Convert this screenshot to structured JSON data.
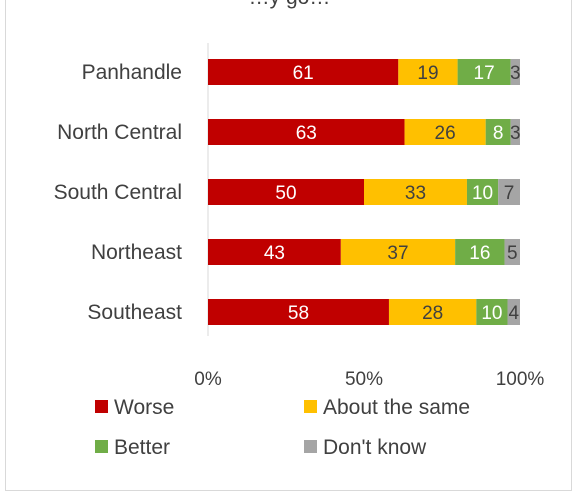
{
  "chart_data": {
    "type": "bar",
    "orientation": "horizontal",
    "stacked": "percent",
    "title": "…y go…",
    "categories": [
      "Panhandle",
      "North Central",
      "South Central",
      "Northeast",
      "Southeast"
    ],
    "series": [
      {
        "name": "Worse",
        "color": "#c00000",
        "label_color": "#ffffff",
        "values": [
          61,
          63,
          50,
          43,
          58
        ]
      },
      {
        "name": "About the same",
        "color": "#ffc000",
        "label_color": "#404040",
        "values": [
          19,
          26,
          33,
          37,
          28
        ]
      },
      {
        "name": "Better",
        "color": "#70ad47",
        "label_color": "#ffffff",
        "values": [
          17,
          8,
          10,
          16,
          10
        ]
      },
      {
        "name": "Don't know",
        "color": "#a5a5a5",
        "label_color": "#404040",
        "values": [
          3,
          3,
          7,
          5,
          4
        ]
      }
    ],
    "xlim": [
      0,
      100
    ],
    "xticks": [
      "0%",
      "50%",
      "100%"
    ],
    "grid": false,
    "legend_position": "bottom"
  }
}
